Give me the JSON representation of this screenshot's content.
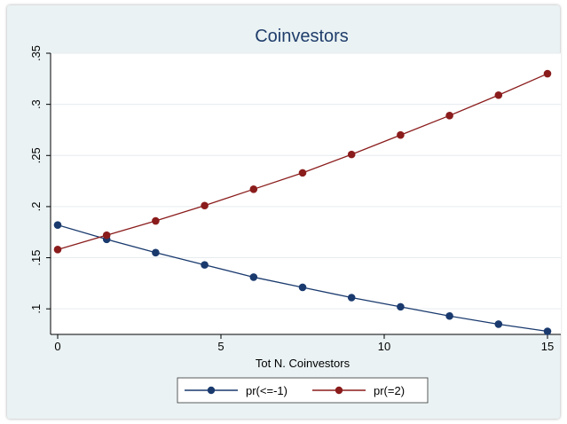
{
  "chart_data": {
    "type": "line",
    "title": "Coinvestors",
    "xlabel": "Tot N. Coinvestors",
    "ylabel": "",
    "xlim": [
      0,
      15
    ],
    "ylim": [
      0.075,
      0.35
    ],
    "x_ticks": [
      0,
      5,
      10,
      15
    ],
    "x_tick_labels": [
      "0",
      "5",
      "10",
      "15"
    ],
    "y_ticks": [
      0.1,
      0.15,
      0.2,
      0.25,
      0.3,
      0.35
    ],
    "y_tick_labels": [
      ".1",
      ".15",
      ".2",
      ".25",
      ".3",
      ".35"
    ],
    "grid": "horizontal",
    "legend_position": "bottom",
    "x": [
      0,
      1.5,
      3,
      4.5,
      6,
      7.5,
      9,
      10.5,
      12,
      13.5,
      15
    ],
    "series": [
      {
        "name": "pr(<=-1)",
        "color": "#1a3a6e",
        "values": [
          0.182,
          0.168,
          0.155,
          0.143,
          0.131,
          0.121,
          0.111,
          0.102,
          0.093,
          0.085,
          0.078
        ]
      },
      {
        "name": "pr(=2)",
        "color": "#8b1c1c",
        "values": [
          0.158,
          0.172,
          0.186,
          0.201,
          0.217,
          0.233,
          0.251,
          0.27,
          0.289,
          0.309,
          0.33
        ]
      }
    ]
  }
}
